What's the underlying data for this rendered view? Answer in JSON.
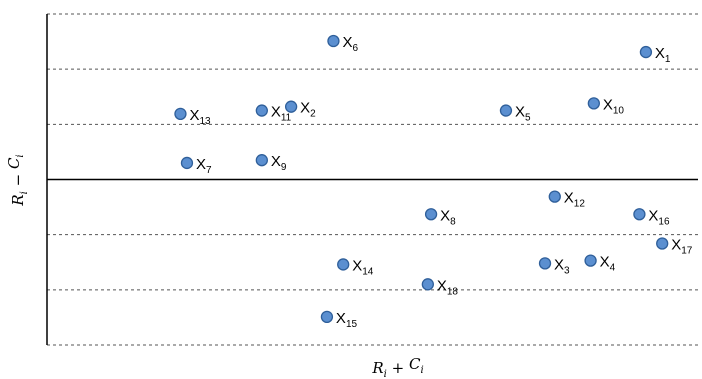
{
  "chart_data": {
    "type": "scatter",
    "title": "",
    "xlabel": {
      "main": "R",
      "sub": "i",
      "op": " + ",
      "main2": "C",
      "sub2": "i"
    },
    "ylabel": {
      "main": "R",
      "sub": "i",
      "op": " − ",
      "main2": "C",
      "sub2": "i"
    },
    "xlim": [
      0,
      100
    ],
    "ylim": [
      -3,
      3
    ],
    "grid": "horizontal dashed",
    "zero_line": "solid",
    "axis_ticks": "none",
    "marker_color": "#5B8FD0",
    "marker_edge": "#2F5F9A",
    "points": [
      {
        "name": "X",
        "sub": "1",
        "x": 92.0,
        "y": 2.31
      },
      {
        "name": "X",
        "sub": "2",
        "x": 37.5,
        "y": 1.32
      },
      {
        "name": "X",
        "sub": "3",
        "x": 76.5,
        "y": -1.52
      },
      {
        "name": "X",
        "sub": "4",
        "x": 83.5,
        "y": -1.47
      },
      {
        "name": "X",
        "sub": "5",
        "x": 70.5,
        "y": 1.25
      },
      {
        "name": "X",
        "sub": "6",
        "x": 44.0,
        "y": 2.51
      },
      {
        "name": "X",
        "sub": "7",
        "x": 21.5,
        "y": 0.3
      },
      {
        "name": "X",
        "sub": "8",
        "x": 59.0,
        "y": -0.63
      },
      {
        "name": "X",
        "sub": "9",
        "x": 33.0,
        "y": 0.35
      },
      {
        "name": "X",
        "sub": "10",
        "x": 84.0,
        "y": 1.38
      },
      {
        "name": "X",
        "sub": "11",
        "x": 33.0,
        "y": 1.25
      },
      {
        "name": "X",
        "sub": "12",
        "x": 78.0,
        "y": -0.31
      },
      {
        "name": "X",
        "sub": "13",
        "x": 20.5,
        "y": 1.19
      },
      {
        "name": "X",
        "sub": "14",
        "x": 45.5,
        "y": -1.54
      },
      {
        "name": "X",
        "sub": "15",
        "x": 43.0,
        "y": -2.49
      },
      {
        "name": "X",
        "sub": "16",
        "x": 91.0,
        "y": -0.63
      },
      {
        "name": "X",
        "sub": "17",
        "x": 94.5,
        "y": -1.16
      },
      {
        "name": "X",
        "sub": "18",
        "x": 58.5,
        "y": -1.9
      }
    ]
  }
}
